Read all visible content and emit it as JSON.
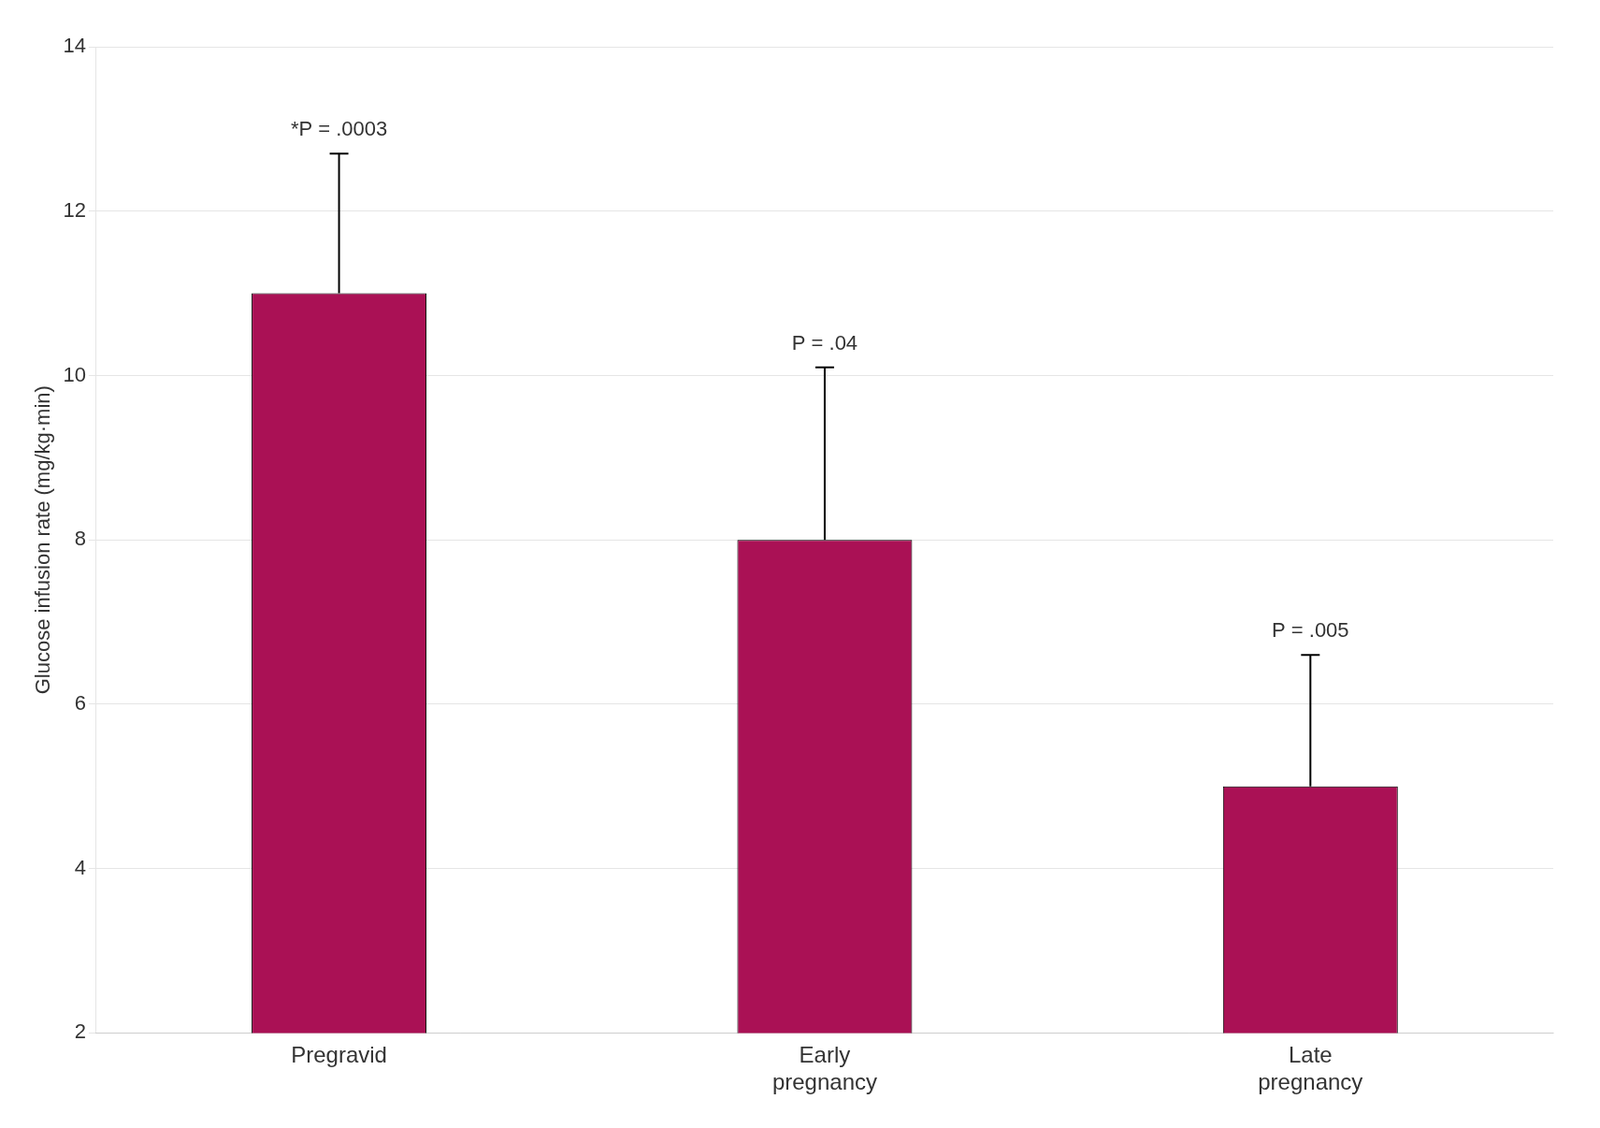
{
  "chart_data": {
    "type": "bar",
    "categories": [
      "Pregravid",
      "Early\npregnancy",
      "Late\npregnancy"
    ],
    "values": [
      11.0,
      8.0,
      5.0
    ],
    "errors_upper": [
      1.7,
      2.1,
      1.6
    ],
    "color": "#aa1155",
    "ylabel": "Glucose infusion rate (mg/kg·min)",
    "ylim": [
      2,
      14
    ],
    "yticks": [
      2,
      4,
      6,
      8,
      10,
      12,
      14
    ],
    "grid": true,
    "annotations": [
      "*P = .0003",
      "P = .04",
      "P = .005"
    ]
  }
}
